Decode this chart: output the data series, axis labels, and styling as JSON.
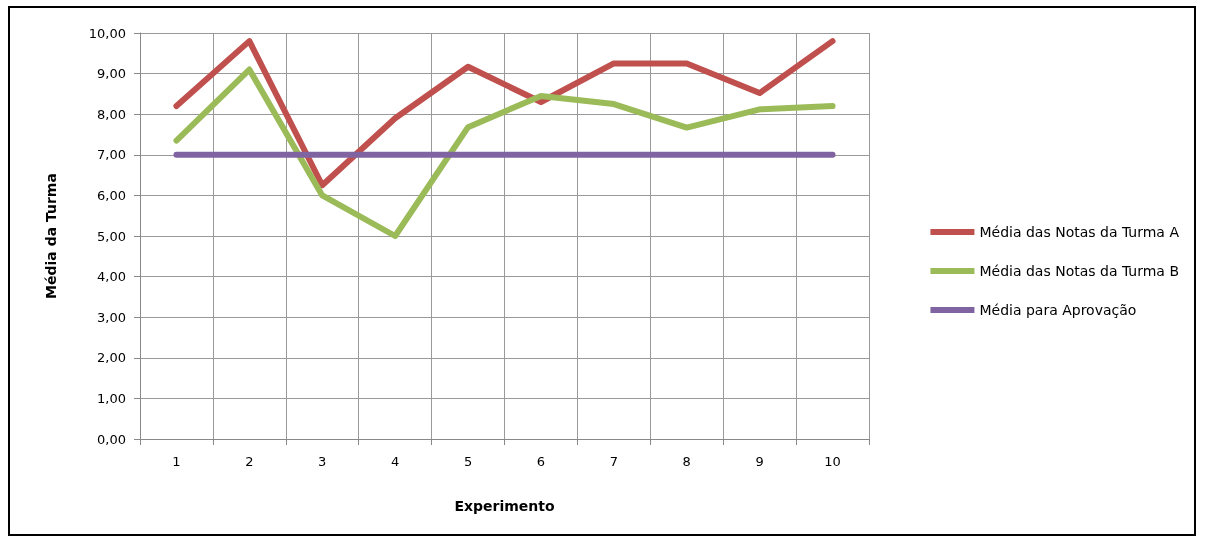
{
  "chart_data": {
    "type": "line",
    "xlabel": "Experimento",
    "ylabel": "Média da Turma",
    "categories": [
      "1",
      "2",
      "3",
      "4",
      "5",
      "6",
      "7",
      "8",
      "9",
      "10"
    ],
    "series": [
      {
        "name": "Média das Notas da Turma A",
        "color": "#c0504d",
        "values": [
          8.2,
          9.8,
          6.25,
          7.9,
          9.17,
          8.3,
          9.25,
          9.25,
          8.52,
          9.8
        ]
      },
      {
        "name": "Média das Notas da Turma B",
        "color": "#9bbb59",
        "values": [
          7.35,
          9.1,
          6.0,
          5.0,
          7.68,
          8.45,
          8.25,
          7.67,
          8.12,
          8.2
        ]
      },
      {
        "name": "Média para Aprovação",
        "color": "#8064a2",
        "values": [
          7,
          7,
          7,
          7,
          7,
          7,
          7,
          7,
          7,
          7
        ]
      }
    ],
    "ylim": [
      0,
      10
    ],
    "yticks": [
      {
        "value": 0,
        "label": "0,00"
      },
      {
        "value": 1,
        "label": "1,00"
      },
      {
        "value": 2,
        "label": "2,00"
      },
      {
        "value": 3,
        "label": "3,00"
      },
      {
        "value": 4,
        "label": "4,00"
      },
      {
        "value": 5,
        "label": "5,00"
      },
      {
        "value": 6,
        "label": "6,00"
      },
      {
        "value": 7,
        "label": "7,00"
      },
      {
        "value": 8,
        "label": "8,00"
      },
      {
        "value": 9,
        "label": "9,00"
      },
      {
        "value": 10,
        "label": "10,00"
      }
    ],
    "grid": true,
    "legend": "right",
    "marker": "none",
    "line_style": "solid"
  }
}
